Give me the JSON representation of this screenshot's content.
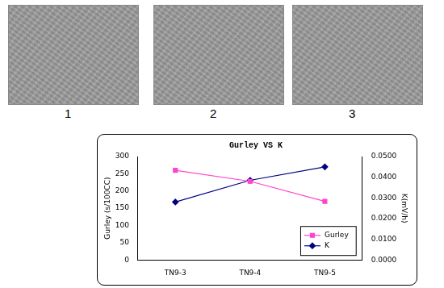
{
  "chart_data": {
    "type": "line",
    "title": "Gurley VS K",
    "categories": [
      "TN9-3",
      "TN9-4",
      "TN9-5"
    ],
    "series": [
      {
        "name": "Gurley",
        "color": "#ff44cc",
        "marker": "square",
        "values": [
          260,
          228,
          170
        ]
      },
      {
        "name": "K",
        "color": "#000080",
        "marker": "diamond",
        "axis": "y2",
        "values": [
          0.028,
          0.0385,
          0.045
        ]
      }
    ],
    "y_label": "Gurley (s/100CC)",
    "y2_label": "K(mV/h)",
    "ylim": [
      0,
      300
    ],
    "yticks": [
      0,
      50,
      100,
      150,
      200,
      250,
      300
    ],
    "y2lim": [
      0,
      0.05
    ],
    "y2ticks": [
      {
        "value": 0,
        "label": "0.0000"
      },
      {
        "value": 0.01,
        "label": "0.0100"
      },
      {
        "value": 0.02,
        "label": "0.0200"
      },
      {
        "value": 0.03,
        "label": "0.0300"
      },
      {
        "value": 0.04,
        "label": "0.0400"
      },
      {
        "value": 0.05,
        "label": "0.0500"
      }
    ],
    "grid": false,
    "legend": "lower right"
  },
  "images": {
    "labels": [
      "1",
      "2",
      "3"
    ]
  }
}
